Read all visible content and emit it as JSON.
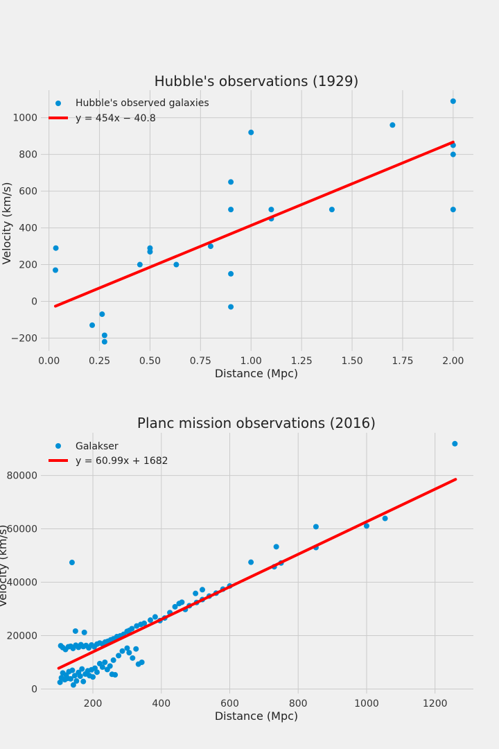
{
  "colors": {
    "background": "#f0f0f0",
    "grid": "#cbcbcb",
    "points": "#008fd5",
    "fit_line": "#ff0000"
  },
  "chart_data": [
    {
      "type": "scatter",
      "title": "Hubble's observations (1929)",
      "xlabel": "Distance (Mpc)",
      "ylabel": "Velocity (km/s)",
      "xlim": [
        -0.04,
        2.1
      ],
      "ylim": [
        -270,
        1150
      ],
      "xticks": [
        "0.00",
        "0.25",
        "0.50",
        "0.75",
        "1.00",
        "1.25",
        "1.50",
        "1.75",
        "2.00"
      ],
      "xtick_values": [
        0,
        0.25,
        0.5,
        0.75,
        1.0,
        1.25,
        1.5,
        1.75,
        2.0
      ],
      "yticks": [
        "−200",
        "0",
        "200",
        "400",
        "600",
        "800",
        "1000"
      ],
      "ytick_values": [
        -200,
        0,
        200,
        400,
        600,
        800,
        1000
      ],
      "grid": true,
      "legend_position": "top-left",
      "series": [
        {
          "name": "Hubble's observed galaxies",
          "type": "scatter",
          "points": [
            [
              0.032,
              170
            ],
            [
              0.034,
              290
            ],
            [
              0.214,
              -130
            ],
            [
              0.263,
              -70
            ],
            [
              0.275,
              -185
            ],
            [
              0.275,
              -220
            ],
            [
              0.45,
              200
            ],
            [
              0.5,
              290
            ],
            [
              0.5,
              270
            ],
            [
              0.63,
              200
            ],
            [
              0.8,
              300
            ],
            [
              0.9,
              -30
            ],
            [
              0.9,
              650
            ],
            [
              0.9,
              150
            ],
            [
              0.9,
              500
            ],
            [
              1.0,
              920
            ],
            [
              1.1,
              450
            ],
            [
              1.1,
              500
            ],
            [
              1.4,
              500
            ],
            [
              1.7,
              960
            ],
            [
              2.0,
              500
            ],
            [
              2.0,
              850
            ],
            [
              2.0,
              800
            ],
            [
              2.0,
              1090
            ]
          ]
        },
        {
          "name": "y = 454x − 40.8",
          "type": "line",
          "slope": 454,
          "intercept": -40.8,
          "x_range": [
            0.032,
            2.0
          ]
        }
      ]
    },
    {
      "type": "scatter",
      "title": "Planc mission observations (2016)",
      "xlabel": "Distance (Mpc)",
      "ylabel": "Velocity (km/s)",
      "xlim": [
        48,
        1312
      ],
      "ylim": [
        -1700,
        96000
      ],
      "xticks": [
        "200",
        "400",
        "600",
        "800",
        "1000",
        "1200"
      ],
      "xtick_values": [
        200,
        400,
        600,
        800,
        1000,
        1200
      ],
      "yticks": [
        "0",
        "20000",
        "40000",
        "60000",
        "80000"
      ],
      "ytick_values": [
        0,
        20000,
        40000,
        60000,
        80000
      ],
      "grid": true,
      "legend_position": "top-left",
      "series": [
        {
          "name": "Galakser",
          "type": "scatter",
          "points": [
            [
              104,
              2500
            ],
            [
              108,
              4200
            ],
            [
              112,
              6000
            ],
            [
              118,
              3500
            ],
            [
              122,
              5200
            ],
            [
              126,
              4000
            ],
            [
              130,
              6500
            ],
            [
              135,
              3800
            ],
            [
              140,
              7000
            ],
            [
              143,
              1500
            ],
            [
              147,
              5000
            ],
            [
              152,
              3000
            ],
            [
              158,
              6200
            ],
            [
              163,
              4800
            ],
            [
              168,
              7500
            ],
            [
              172,
              2800
            ],
            [
              178,
              5600
            ],
            [
              185,
              6800
            ],
            [
              190,
              5000
            ],
            [
              196,
              7200
            ],
            [
              200,
              4500
            ],
            [
              206,
              7800
            ],
            [
              212,
              6300
            ],
            [
              220,
              9500
            ],
            [
              228,
              8200
            ],
            [
              235,
              10000
            ],
            [
              242,
              7300
            ],
            [
              250,
              8600
            ],
            [
              260,
              10800
            ],
            [
              265,
              5300
            ],
            [
              275,
              12500
            ],
            [
              286,
              14200
            ],
            [
              300,
              15300
            ],
            [
              306,
              13600
            ],
            [
              316,
              11600
            ],
            [
              326,
              15000
            ],
            [
              333,
              9300
            ],
            [
              343,
              10000
            ],
            [
              106,
              16200
            ],
            [
              112,
              15500
            ],
            [
              120,
              14800
            ],
            [
              128,
              15800
            ],
            [
              135,
              16000
            ],
            [
              142,
              15200
            ],
            [
              150,
              16400
            ],
            [
              158,
              15600
            ],
            [
              165,
              16600
            ],
            [
              172,
              15900
            ],
            [
              180,
              16300
            ],
            [
              188,
              15400
            ],
            [
              196,
              16500
            ],
            [
              204,
              15800
            ],
            [
              212,
              16800
            ],
            [
              220,
              17200
            ],
            [
              228,
              16900
            ],
            [
              236,
              17600
            ],
            [
              244,
              17900
            ],
            [
              252,
              18400
            ],
            [
              260,
              18800
            ],
            [
              270,
              19600
            ],
            [
              280,
              19900
            ],
            [
              290,
              20500
            ],
            [
              300,
              21600
            ],
            [
              306,
              21900
            ],
            [
              314,
              22600
            ],
            [
              328,
              23600
            ],
            [
              340,
              24200
            ],
            [
              350,
              24600
            ],
            [
              368,
              25800
            ],
            [
              382,
              27000
            ],
            [
              396,
              25600
            ],
            [
              410,
              26600
            ],
            [
              425,
              28600
            ],
            [
              440,
              30800
            ],
            [
              452,
              32000
            ],
            [
              460,
              32500
            ],
            [
              470,
              29800
            ],
            [
              482,
              31200
            ],
            [
              500,
              35800
            ],
            [
              503,
              32400
            ],
            [
              520,
              37200
            ],
            [
              520,
              33500
            ],
            [
              540,
              34800
            ],
            [
              560,
              35900
            ],
            [
              580,
              37400
            ],
            [
              600,
              38600
            ],
            [
              662,
              47500
            ],
            [
              730,
              45800
            ],
            [
              736,
              53300
            ],
            [
              750,
              47200
            ],
            [
              852,
              60800
            ],
            [
              852,
              53000
            ],
            [
              1000,
              61100
            ],
            [
              1054,
              63900
            ],
            [
              139,
              47400
            ],
            [
              149,
              21700
            ],
            [
              175,
              21200
            ],
            [
              256,
              5500
            ],
            [
              1258,
              91900
            ]
          ]
        },
        {
          "name": "y = 60.99x + 1682",
          "type": "line",
          "slope": 60.99,
          "intercept": 1682,
          "x_range": [
            100,
            1260
          ]
        }
      ]
    }
  ]
}
